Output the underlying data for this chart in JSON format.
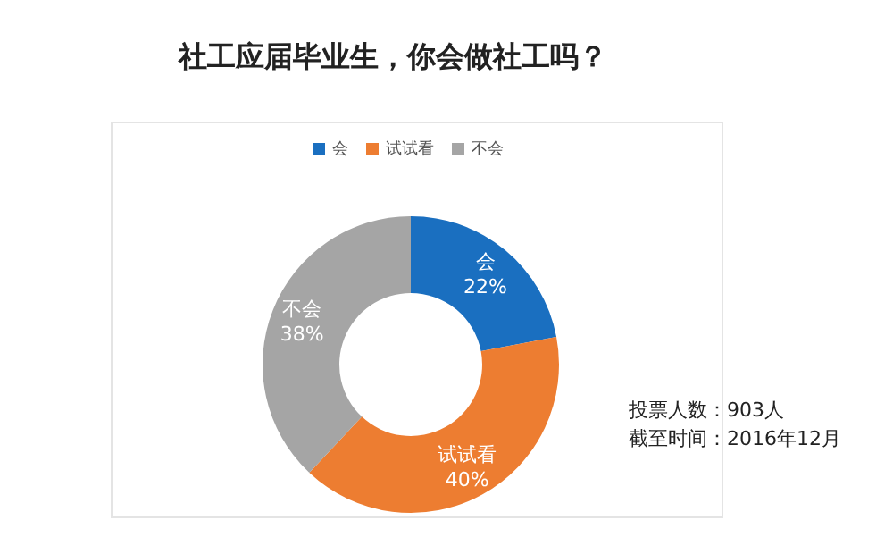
{
  "chart_data": {
    "type": "donut",
    "title": "社工应届毕业生，你会做社工吗？",
    "categories": [
      "会",
      "试试看",
      "不会"
    ],
    "values": [
      22,
      40,
      38
    ],
    "colors": [
      "#1a6fc0",
      "#ed7d31",
      "#a5a5a5"
    ],
    "legend": "top",
    "value_labels": [
      "22%",
      "40%",
      "38%"
    ],
    "annotations": [
      "投票人数：903人",
      "截至时间：2016年12月"
    ]
  }
}
